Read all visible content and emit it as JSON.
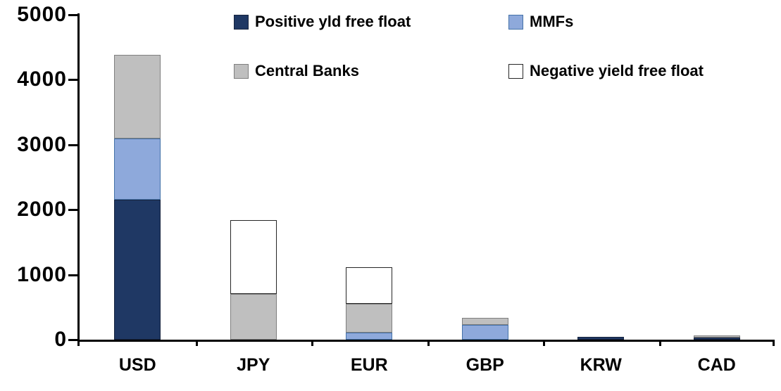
{
  "chart_data": {
    "type": "bar",
    "stacked": true,
    "title": "",
    "xlabel": "",
    "ylabel": "",
    "categories": [
      "USD",
      "JPY",
      "EUR",
      "GBP",
      "KRW",
      "CAD"
    ],
    "series": [
      {
        "name": "Positive yld free float",
        "color": "#1F3864",
        "border_color": "#16243F",
        "values": [
          2150,
          0,
          0,
          0,
          45,
          30
        ]
      },
      {
        "name": "MMFs",
        "color": "#8EA9DB",
        "border_color": "#4472A8",
        "values": [
          950,
          0,
          110,
          230,
          0,
          0
        ]
      },
      {
        "name": "Central Banks",
        "color": "#BFBFBF",
        "border_color": "#7F7F7F",
        "values": [
          1280,
          700,
          440,
          110,
          0,
          30
        ]
      },
      {
        "name": "Negative yield free float",
        "color": "#FFFFFF",
        "border_color": "#262626",
        "values": [
          0,
          1140,
          560,
          0,
          0,
          0
        ]
      }
    ],
    "totals_by_category": [
      4380,
      1840,
      1110,
      340,
      45,
      60
    ],
    "ylim": [
      0,
      5000
    ],
    "yticks": [
      "0",
      "1000",
      "2000",
      "3000",
      "4000",
      "5000"
    ],
    "grid": false,
    "legend_position": "top",
    "legend_columns": 2,
    "axis_color": "#000000",
    "background_color": "#FFFFFF"
  }
}
